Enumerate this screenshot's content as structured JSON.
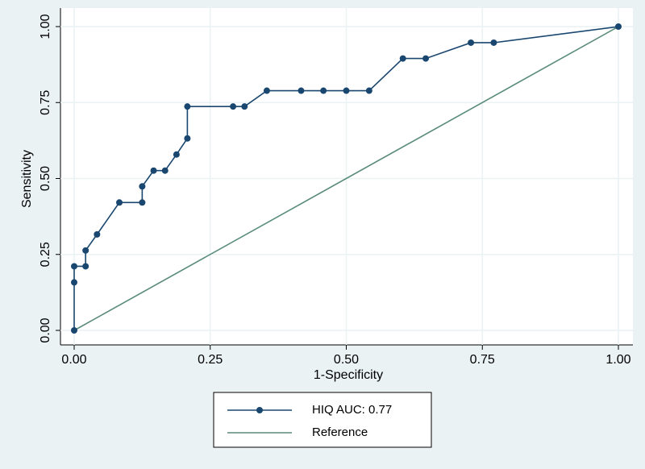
{
  "chart_data": {
    "type": "line",
    "xlabel": "1-Specificity",
    "ylabel": "Sensitivity",
    "xlim": [
      0,
      1
    ],
    "ylim": [
      0,
      1
    ],
    "xticks": [
      {
        "value": 0,
        "label": "0.00"
      },
      {
        "value": 0.25,
        "label": "0.25"
      },
      {
        "value": 0.5,
        "label": "0.50"
      },
      {
        "value": 0.75,
        "label": "0.75"
      },
      {
        "value": 1,
        "label": "1.00"
      }
    ],
    "yticks": [
      {
        "value": 0,
        "label": "0.00"
      },
      {
        "value": 0.25,
        "label": "0.25"
      },
      {
        "value": 0.5,
        "label": "0.50"
      },
      {
        "value": 0.75,
        "label": "0.75"
      },
      {
        "value": 1,
        "label": "1.00"
      }
    ],
    "grid": true,
    "legend": "bottom",
    "series": [
      {
        "name": "HIQ AUC: 0.77",
        "color": "#1a476f",
        "marker": true,
        "x": [
          0,
          0,
          0,
          0.021,
          0.021,
          0.042,
          0.083,
          0.125,
          0.125,
          0.146,
          0.167,
          0.188,
          0.208,
          0.208,
          0.292,
          0.313,
          0.354,
          0.417,
          0.458,
          0.5,
          0.542,
          0.604,
          0.646,
          0.729,
          0.771,
          1
        ],
        "values": [
          0,
          0.158,
          0.211,
          0.211,
          0.263,
          0.316,
          0.421,
          0.421,
          0.474,
          0.526,
          0.526,
          0.579,
          0.632,
          0.737,
          0.737,
          0.737,
          0.789,
          0.789,
          0.789,
          0.789,
          0.789,
          0.895,
          0.895,
          0.947,
          0.947,
          1
        ]
      },
      {
        "name": "Reference",
        "color": "#5a8c7a",
        "marker": false,
        "x": [
          0,
          1
        ],
        "values": [
          0,
          1
        ]
      }
    ]
  }
}
